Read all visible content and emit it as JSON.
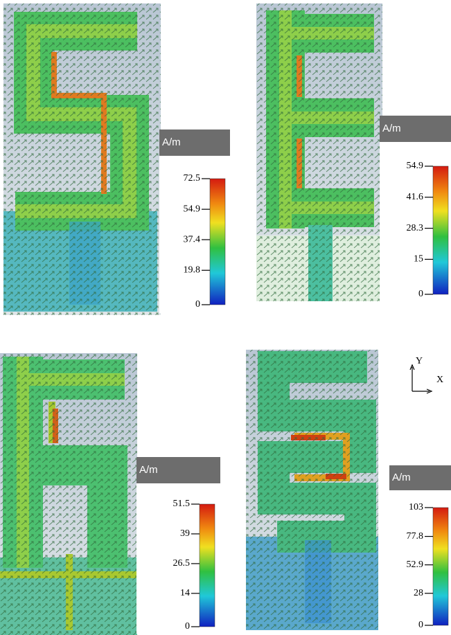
{
  "panels": [
    {
      "unit": "A/m",
      "ticks": [
        72.5,
        54.9,
        37.4,
        19.8,
        0
      ]
    },
    {
      "unit": "A/m",
      "ticks": [
        54.9,
        41.6,
        28.3,
        15,
        0
      ]
    },
    {
      "unit": "A/m",
      "ticks": [
        51.5,
        39,
        26.5,
        14,
        0
      ]
    },
    {
      "unit": "A/m",
      "ticks": [
        103,
        77.8,
        52.9,
        28,
        0
      ]
    }
  ],
  "axes": {
    "y": "Y",
    "x": "X"
  }
}
